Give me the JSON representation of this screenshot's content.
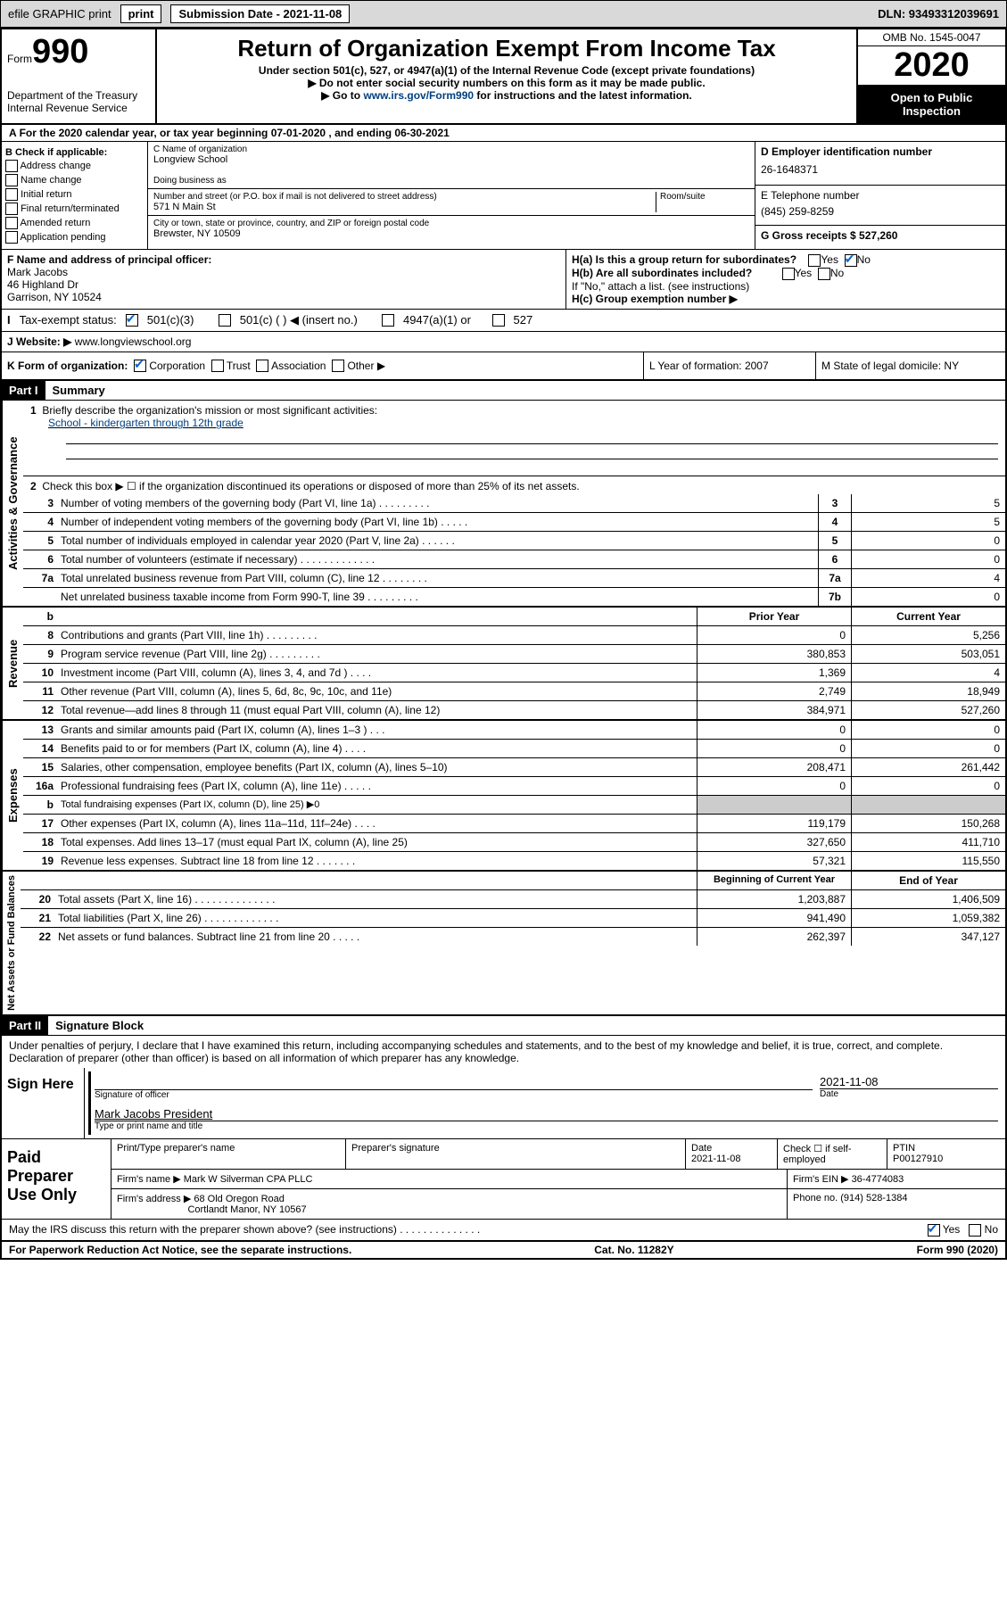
{
  "header": {
    "efile": "efile GRAPHIC print",
    "submission_date": "Submission Date - 2021-11-08",
    "dln": "DLN: 93493312039691"
  },
  "formtop": {
    "form_label": "Form",
    "form_number": "990",
    "dept": "Department of the Treasury",
    "irs": "Internal Revenue Service",
    "title": "Return of Organization Exempt From Income Tax",
    "subtitle1": "Under section 501(c), 527, or 4947(a)(1) of the Internal Revenue Code (except private foundations)",
    "subtitle2": "▶ Do not enter social security numbers on this form as it may be made public.",
    "subtitle3_a": "▶ Go to ",
    "subtitle3_link": "www.irs.gov/Form990",
    "subtitle3_b": " for instructions and the latest information.",
    "omb": "OMB No. 1545-0047",
    "year": "2020",
    "open": "Open to Public Inspection"
  },
  "period": {
    "text": "For the 2020 calendar year, or tax year beginning 07-01-2020   , and ending 06-30-2021"
  },
  "checkboxes": {
    "label": "B Check if applicable:",
    "addr": "Address change",
    "name": "Name change",
    "initial": "Initial return",
    "final": "Final return/terminated",
    "amended": "Amended return",
    "app": "Application pending"
  },
  "entity": {
    "name_label": "C Name of organization",
    "name": "Longview School",
    "dba_label": "Doing business as",
    "street_label": "Number and street (or P.O. box if mail is not delivered to street address)",
    "room_label": "Room/suite",
    "street": "571 N Main St",
    "city_label": "City or town, state or province, country, and ZIP or foreign postal code",
    "city": "Brewster, NY  10509"
  },
  "rightcol": {
    "ein_label": "D Employer identification number",
    "ein": "26-1648371",
    "phone_label": "E Telephone number",
    "phone": "(845) 259-8259",
    "gross_label": "G Gross receipts $ 527,260"
  },
  "officer": {
    "label": "F  Name and address of principal officer:",
    "name": "Mark Jacobs",
    "street": "46 Highland Dr",
    "city": "Garrison, NY  10524",
    "ha": "H(a)  Is this a group return for subordinates?",
    "ha_yes": "Yes",
    "ha_no": "No",
    "hb": "H(b)  Are all subordinates included?",
    "hb_yes": "Yes",
    "hb_no": "No",
    "hb_note": "If \"No,\" attach a list. (see instructions)",
    "hc": "H(c)  Group exemption number ▶"
  },
  "taxstatus": {
    "label_i": "I",
    "label": "Tax-exempt status:",
    "c3": "501(c)(3)",
    "c": "501(c) (   ) ◀ (insert no.)",
    "a1": "4947(a)(1) or",
    "s527": "527"
  },
  "website": {
    "label": "J Website: ▶",
    "url": "www.longviewschool.org"
  },
  "orgform": {
    "label": "K Form of organization:",
    "corp": "Corporation",
    "trust": "Trust",
    "assoc": "Association",
    "other": "Other ▶",
    "year_label": "L Year of formation: 2007",
    "state_label": "M State of legal domicile: NY"
  },
  "parti": {
    "header": "Part I",
    "title": "Summary",
    "q1_label": "1",
    "q1": "Briefly describe the organization's mission or most significant activities:",
    "q1_answer": "School - kindergarten through 12th grade",
    "q2_label": "2",
    "q2": "Check this box ▶ ☐  if the organization discontinued its operations or disposed of more than 25% of its net assets."
  },
  "gov": {
    "label": "Activities & Governance",
    "rows": [
      {
        "n": "3",
        "d": "Number of voting members of the governing body (Part VI, line 1a)   .   .   .   .   .   .   .   .   .",
        "k": "3",
        "v": "5"
      },
      {
        "n": "4",
        "d": "Number of independent voting members of the governing body (Part VI, line 1b)   .   .   .   .   .",
        "k": "4",
        "v": "5"
      },
      {
        "n": "5",
        "d": "Total number of individuals employed in calendar year 2020 (Part V, line 2a)   .   .   .   .   .   .",
        "k": "5",
        "v": "0"
      },
      {
        "n": "6",
        "d": "Total number of volunteers (estimate if necessary)   .   .   .   .   .   .   .   .   .   .   .   .   .",
        "k": "6",
        "v": "0"
      },
      {
        "n": "7a",
        "d": "Total unrelated business revenue from Part VIII, column (C), line 12   .   .   .   .   .   .   .   .",
        "k": "7a",
        "v": "4"
      },
      {
        "n": "",
        "d": "Net unrelated business taxable income from Form 990-T, line 39   .   .   .   .   .   .   .   .   .",
        "k": "7b",
        "v": "0"
      }
    ]
  },
  "rev": {
    "label": "Revenue",
    "header_b": "b",
    "header_prior": "Prior Year",
    "header_current": "Current Year",
    "rows": [
      {
        "n": "8",
        "d": "Contributions and grants (Part VIII, line 1h)   .   .   .   .   .   .   .   .   .",
        "p": "0",
        "c": "5,256"
      },
      {
        "n": "9",
        "d": "Program service revenue (Part VIII, line 2g)   .   .   .   .   .   .   .   .   .",
        "p": "380,853",
        "c": "503,051"
      },
      {
        "n": "10",
        "d": "Investment income (Part VIII, column (A), lines 3, 4, and 7d )   .   .   .   .",
        "p": "1,369",
        "c": "4"
      },
      {
        "n": "11",
        "d": "Other revenue (Part VIII, column (A), lines 5, 6d, 8c, 9c, 10c, and 11e)",
        "p": "2,749",
        "c": "18,949"
      },
      {
        "n": "12",
        "d": "Total revenue—add lines 8 through 11 (must equal Part VIII, column (A), line 12)",
        "p": "384,971",
        "c": "527,260"
      }
    ]
  },
  "exp": {
    "label": "Expenses",
    "rows": [
      {
        "n": "13",
        "d": "Grants and similar amounts paid (Part IX, column (A), lines 1–3 )   .   .   .",
        "p": "0",
        "c": "0"
      },
      {
        "n": "14",
        "d": "Benefits paid to or for members (Part IX, column (A), line 4)   .   .   .   .",
        "p": "0",
        "c": "0"
      },
      {
        "n": "15",
        "d": "Salaries, other compensation, employee benefits (Part IX, column (A), lines 5–10)",
        "p": "208,471",
        "c": "261,442"
      },
      {
        "n": "16a",
        "d": "Professional fundraising fees (Part IX, column (A), line 11e)   .   .   .   .   .",
        "p": "0",
        "c": "0"
      },
      {
        "n": "b",
        "d": "Total fundraising expenses (Part IX, column (D), line 25) ▶0",
        "p": "",
        "c": "",
        "grey": true
      },
      {
        "n": "17",
        "d": "Other expenses (Part IX, column (A), lines 11a–11d, 11f–24e)   .   .   .   .",
        "p": "119,179",
        "c": "150,268"
      },
      {
        "n": "18",
        "d": "Total expenses. Add lines 13–17 (must equal Part IX, column (A), line 25)",
        "p": "327,650",
        "c": "411,710"
      },
      {
        "n": "19",
        "d": "Revenue less expenses. Subtract line 18 from line 12   .   .   .   .   .   .   .",
        "p": "57,321",
        "c": "115,550"
      }
    ]
  },
  "net": {
    "label": "Net Assets or Fund Balances",
    "header_prior": "Beginning of Current Year",
    "header_current": "End of Year",
    "rows": [
      {
        "n": "20",
        "d": "Total assets (Part X, line 16)   .   .   .   .   .   .   .   .   .   .   .   .   .   .",
        "p": "1,203,887",
        "c": "1,406,509"
      },
      {
        "n": "21",
        "d": "Total liabilities (Part X, line 26)   .   .   .   .   .   .   .   .   .   .   .   .   .",
        "p": "941,490",
        "c": "1,059,382"
      },
      {
        "n": "22",
        "d": "Net assets or fund balances. Subtract line 21 from line 20   .   .   .   .   .",
        "p": "262,397",
        "c": "347,127"
      }
    ]
  },
  "partii": {
    "header": "Part II",
    "title": "Signature Block",
    "text": "Under penalties of perjury, I declare that I have examined this return, including accompanying schedules and statements, and to the best of my knowledge and belief, it is true, correct, and complete. Declaration of preparer (other than officer) is based on all information of which preparer has any knowledge."
  },
  "sign": {
    "label": "Sign Here",
    "sig_of": "Signature of officer",
    "date_label": "Date",
    "date": "2021-11-08",
    "name": "Mark Jacobs  President",
    "type": "Type or print name and title"
  },
  "paid": {
    "label": "Paid Preparer Use Only",
    "h1": "Print/Type preparer's name",
    "h2": "Preparer's signature",
    "h3_label": "Date",
    "h3": "2021-11-08",
    "h4": "Check ☐  if self-employed",
    "h5_label": "PTIN",
    "h5": "P00127910",
    "firm_label": "Firm's name    ▶",
    "firm": "Mark W Silverman CPA PLLC",
    "ein_label": "Firm's EIN ▶",
    "ein": "36-4774083",
    "addr_label": "Firm's address ▶",
    "addr1": "68 Old Oregon Road",
    "addr2": "Cortlandt Manor, NY  10567",
    "phone_label": "Phone no.",
    "phone": "(914) 528-1384",
    "discuss": "May the IRS discuss this return with the preparer shown above? (see instructions)   .   .   .   .   .   .   .   .   .   .   .   .   .   .",
    "yes": "Yes",
    "no": "No"
  },
  "footer": {
    "pra": "For Paperwork Reduction Act Notice, see the separate instructions.",
    "cat": "Cat. No. 11282Y",
    "form": "Form 990 (2020)"
  }
}
